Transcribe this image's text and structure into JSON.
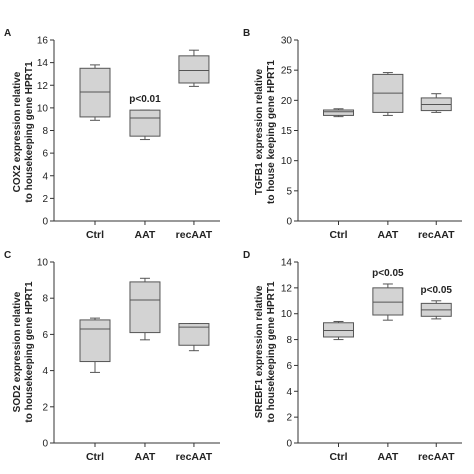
{
  "colors": {
    "box_fill": "#d3d3d3",
    "stroke": "#555555",
    "axis": "#333333",
    "text": "#222222"
  },
  "chart_data": [
    {
      "type": "box",
      "panel": "A",
      "ylabel_line1": "COX2 expression relative",
      "ylabel_line2": "to housekeeping gene HPRT1",
      "ylim": [
        0,
        16
      ],
      "yticks": [
        "0",
        "2",
        "4",
        "6",
        "8",
        "10",
        "12",
        "14",
        "16"
      ],
      "categories": [
        "Ctrl",
        "AAT",
        "recAAT"
      ],
      "boxes": [
        {
          "min": 8.9,
          "q1": 9.2,
          "median": 11.4,
          "q3": 13.5,
          "max": 13.8,
          "annotation": ""
        },
        {
          "min": 7.2,
          "q1": 7.5,
          "median": 9.1,
          "q3": 9.8,
          "max": 9.8,
          "annotation": "p<0.01"
        },
        {
          "min": 11.9,
          "q1": 12.2,
          "median": 13.3,
          "q3": 14.6,
          "max": 15.1,
          "annotation": ""
        }
      ]
    },
    {
      "type": "box",
      "panel": "B",
      "ylabel_line1": "TGFB1 expression relative",
      "ylabel_line2": "to house keeping gene HPRT1",
      "ylim": [
        0,
        30
      ],
      "yticks": [
        "0",
        "5",
        "10",
        "15",
        "20",
        "25",
        "30"
      ],
      "categories": [
        "Ctrl",
        "AAT",
        "recAAT"
      ],
      "boxes": [
        {
          "min": 17.3,
          "q1": 17.5,
          "median": 18.1,
          "q3": 18.4,
          "max": 18.6,
          "annotation": ""
        },
        {
          "min": 17.5,
          "q1": 18.0,
          "median": 21.2,
          "q3": 24.3,
          "max": 24.6,
          "annotation": ""
        },
        {
          "min": 18.0,
          "q1": 18.3,
          "median": 19.3,
          "q3": 20.4,
          "max": 21.1,
          "annotation": ""
        }
      ]
    },
    {
      "type": "box",
      "panel": "C",
      "ylabel_line1": "SOD2 expression relative",
      "ylabel_line2": "to housekeeping gene HPRT1",
      "ylim": [
        0,
        10
      ],
      "yticks": [
        "0",
        "2",
        "4",
        "6",
        "8",
        "10"
      ],
      "categories": [
        "Ctrl",
        "AAT",
        "recAAT"
      ],
      "boxes": [
        {
          "min": 3.9,
          "q1": 4.5,
          "median": 6.3,
          "q3": 6.8,
          "max": 6.9,
          "annotation": ""
        },
        {
          "min": 5.7,
          "q1": 6.1,
          "median": 7.9,
          "q3": 8.9,
          "max": 9.1,
          "annotation": ""
        },
        {
          "min": 5.1,
          "q1": 5.4,
          "median": 6.4,
          "q3": 6.6,
          "max": 6.6,
          "annotation": ""
        }
      ]
    },
    {
      "type": "box",
      "panel": "D",
      "ylabel_line1": "SREBF1 expression relative",
      "ylabel_line2": "to housekeeping gene HPRT1",
      "ylim": [
        0,
        14
      ],
      "yticks": [
        "0",
        "2",
        "4",
        "6",
        "8",
        "10",
        "12",
        "14"
      ],
      "categories": [
        "Ctrl",
        "AAT",
        "recAAT"
      ],
      "boxes": [
        {
          "min": 8.0,
          "q1": 8.2,
          "median": 8.7,
          "q3": 9.3,
          "max": 9.4,
          "annotation": ""
        },
        {
          "min": 9.5,
          "q1": 9.9,
          "median": 10.9,
          "q3": 12.0,
          "max": 12.3,
          "annotation": "p<0.05"
        },
        {
          "min": 9.6,
          "q1": 9.8,
          "median": 10.3,
          "q3": 10.8,
          "max": 11.0,
          "annotation": "p<0.05"
        }
      ]
    }
  ]
}
